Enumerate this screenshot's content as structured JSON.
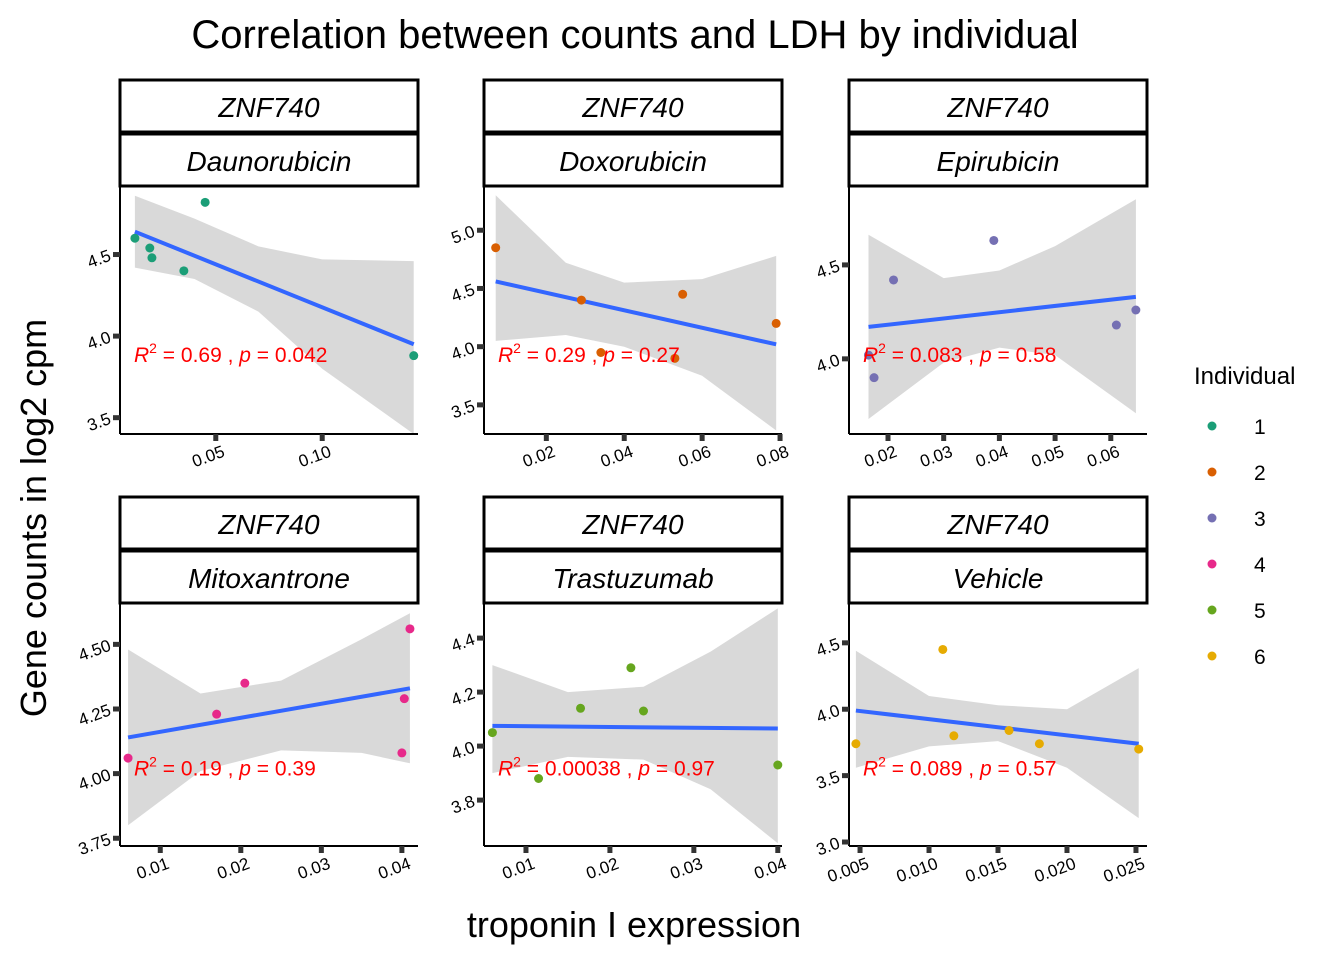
{
  "chart_data": {
    "type": "scatter",
    "title": "Correlation between counts and LDH by individual",
    "xlabel": "troponin I expression",
    "ylabel": "Gene counts in log2 cpm",
    "gene": "ZNF740",
    "legend": {
      "title": "Individual",
      "position": "right",
      "entries": [
        {
          "label": "1",
          "color": "#1B9E77"
        },
        {
          "label": "2",
          "color": "#D95F02"
        },
        {
          "label": "3",
          "color": "#7570B3"
        },
        {
          "label": "4",
          "color": "#E7298A"
        },
        {
          "label": "5",
          "color": "#66A61E"
        },
        {
          "label": "6",
          "color": "#E6AB02"
        }
      ]
    },
    "colors": {
      "fit_line": "#3366FF",
      "ribbon": "#D9D9D9",
      "annotation": "#FF0000"
    },
    "panels": [
      {
        "drug": "Daunorubicin",
        "xlim": [
          0.005,
          0.145
        ],
        "ylim": [
          3.4,
          4.92
        ],
        "xticks": [
          0.05,
          0.1
        ],
        "xtick_labels": [
          "0.05",
          "0.10"
        ],
        "yticks": [
          3.5,
          4.0,
          4.5
        ],
        "ytick_labels": [
          "3.5",
          "4.0",
          "4.5"
        ],
        "points": [
          {
            "x": 0.012,
            "y": 4.6,
            "ind": 1
          },
          {
            "x": 0.019,
            "y": 4.54,
            "ind": 1
          },
          {
            "x": 0.02,
            "y": 4.48,
            "ind": 1
          },
          {
            "x": 0.035,
            "y": 4.4,
            "ind": 1
          },
          {
            "x": 0.045,
            "y": 4.82,
            "ind": 1
          },
          {
            "x": 0.143,
            "y": 3.88,
            "ind": 1
          }
        ],
        "fit": {
          "x": [
            0.012,
            0.143
          ],
          "y": [
            4.64,
            3.95
          ]
        },
        "ribbon": {
          "x": [
            0.012,
            0.04,
            0.07,
            0.1,
            0.143
          ],
          "lower": [
            4.42,
            4.35,
            4.15,
            3.8,
            3.4
          ],
          "upper": [
            4.86,
            4.72,
            4.55,
            4.47,
            4.46
          ]
        },
        "r2": "0.69",
        "p": "0.042"
      },
      {
        "drug": "Doxorubicin",
        "xlim": [
          0.004,
          0.0805
        ],
        "ylim": [
          3.25,
          5.38
        ],
        "xticks": [
          0.02,
          0.04,
          0.06,
          0.08
        ],
        "xtick_labels": [
          "0.02",
          "0.04",
          "0.06",
          "0.08"
        ],
        "yticks": [
          3.5,
          4.0,
          4.5,
          5.0
        ],
        "ytick_labels": [
          "3.5",
          "4.0",
          "4.5",
          "5.0"
        ],
        "points": [
          {
            "x": 0.007,
            "y": 4.85,
            "ind": 2
          },
          {
            "x": 0.029,
            "y": 4.4,
            "ind": 2
          },
          {
            "x": 0.034,
            "y": 3.95,
            "ind": 2
          },
          {
            "x": 0.053,
            "y": 3.9,
            "ind": 2
          },
          {
            "x": 0.055,
            "y": 4.45,
            "ind": 2
          },
          {
            "x": 0.079,
            "y": 4.2,
            "ind": 2
          }
        ],
        "fit": {
          "x": [
            0.007,
            0.079
          ],
          "y": [
            4.56,
            4.02
          ]
        },
        "ribbon": {
          "x": [
            0.007,
            0.025,
            0.04,
            0.06,
            0.079
          ],
          "lower": [
            4.05,
            4.1,
            4.0,
            3.75,
            3.28
          ],
          "upper": [
            5.3,
            4.72,
            4.55,
            4.58,
            4.78
          ]
        },
        "r2": "0.29",
        "p": "0.27"
      },
      {
        "drug": "Epirubicin",
        "xlim": [
          0.013,
          0.0665
        ],
        "ylim": [
          3.6,
          4.92
        ],
        "xticks": [
          0.02,
          0.03,
          0.04,
          0.05,
          0.06
        ],
        "xtick_labels": [
          "0.02",
          "0.03",
          "0.04",
          "0.05",
          "0.06"
        ],
        "yticks": [
          4.0,
          4.5
        ],
        "ytick_labels": [
          "4.0",
          "4.5"
        ],
        "points": [
          {
            "x": 0.0165,
            "y": 4.02,
            "ind": 3
          },
          {
            "x": 0.0175,
            "y": 3.9,
            "ind": 3
          },
          {
            "x": 0.021,
            "y": 4.42,
            "ind": 3
          },
          {
            "x": 0.039,
            "y": 4.63,
            "ind": 3
          },
          {
            "x": 0.061,
            "y": 4.18,
            "ind": 3
          },
          {
            "x": 0.0645,
            "y": 4.26,
            "ind": 3
          }
        ],
        "fit": {
          "x": [
            0.0165,
            0.0645
          ],
          "y": [
            4.17,
            4.33
          ]
        },
        "ribbon": {
          "x": [
            0.0165,
            0.03,
            0.04,
            0.05,
            0.0645
          ],
          "lower": [
            3.68,
            3.98,
            4.06,
            4.02,
            3.71
          ],
          "upper": [
            4.66,
            4.43,
            4.47,
            4.6,
            4.85
          ]
        },
        "r2": "0.083",
        "p": "0.58"
      },
      {
        "drug": "Mitoxantrone",
        "xlim": [
          0.005,
          0.042
        ],
        "ylim": [
          3.72,
          4.66
        ],
        "xticks": [
          0.01,
          0.02,
          0.03,
          0.04
        ],
        "xtick_labels": [
          "0.01",
          "0.02",
          "0.03",
          "0.04"
        ],
        "yticks": [
          3.75,
          4.0,
          4.25,
          4.5
        ],
        "ytick_labels": [
          "3.75",
          "4.00",
          "4.25",
          "4.50"
        ],
        "points": [
          {
            "x": 0.006,
            "y": 4.06,
            "ind": 4
          },
          {
            "x": 0.017,
            "y": 4.23,
            "ind": 4
          },
          {
            "x": 0.0205,
            "y": 4.35,
            "ind": 4
          },
          {
            "x": 0.04,
            "y": 4.08,
            "ind": 4
          },
          {
            "x": 0.0403,
            "y": 4.29,
            "ind": 4
          },
          {
            "x": 0.041,
            "y": 4.56,
            "ind": 4
          }
        ],
        "fit": {
          "x": [
            0.006,
            0.041
          ],
          "y": [
            4.14,
            4.33
          ]
        },
        "ribbon": {
          "x": [
            0.006,
            0.015,
            0.025,
            0.035,
            0.041
          ],
          "lower": [
            3.8,
            4.01,
            4.09,
            4.08,
            4.04
          ],
          "upper": [
            4.48,
            4.31,
            4.36,
            4.52,
            4.62
          ]
        },
        "r2": "0.19",
        "p": "0.39"
      },
      {
        "drug": "Trastuzumab",
        "xlim": [
          0.005,
          0.0405
        ],
        "ylim": [
          3.63,
          4.53
        ],
        "xticks": [
          0.01,
          0.02,
          0.03,
          0.04
        ],
        "xtick_labels": [
          "0.01",
          "0.02",
          "0.03",
          "0.04"
        ],
        "yticks": [
          3.8,
          4.0,
          4.2,
          4.4
        ],
        "ytick_labels": [
          "3.8",
          "4.0",
          "4.2",
          "4.4"
        ],
        "points": [
          {
            "x": 0.006,
            "y": 4.05,
            "ind": 5
          },
          {
            "x": 0.0115,
            "y": 3.88,
            "ind": 5
          },
          {
            "x": 0.0165,
            "y": 4.14,
            "ind": 5
          },
          {
            "x": 0.0225,
            "y": 4.29,
            "ind": 5
          },
          {
            "x": 0.024,
            "y": 4.13,
            "ind": 5
          },
          {
            "x": 0.04,
            "y": 3.93,
            "ind": 5
          }
        ],
        "fit": {
          "x": [
            0.006,
            0.04
          ],
          "y": [
            4.075,
            4.065
          ]
        },
        "ribbon": {
          "x": [
            0.006,
            0.015,
            0.024,
            0.032,
            0.04
          ],
          "lower": [
            3.9,
            3.96,
            3.95,
            3.84,
            3.64
          ],
          "upper": [
            4.3,
            4.2,
            4.22,
            4.35,
            4.51
          ]
        },
        "r2": "0.00038",
        "p": "0.97"
      },
      {
        "drug": "Vehicle",
        "xlim": [
          0.0042,
          0.0258
        ],
        "ylim": [
          2.97,
          4.8
        ],
        "xticks": [
          0.005,
          0.01,
          0.015,
          0.02,
          0.025
        ],
        "xtick_labels": [
          "0.005",
          "0.010",
          "0.015",
          "0.020",
          "0.025"
        ],
        "yticks": [
          3.0,
          3.5,
          4.0,
          4.5
        ],
        "ytick_labels": [
          "3.0",
          "3.5",
          "4.0",
          "4.5"
        ],
        "points": [
          {
            "x": 0.0047,
            "y": 3.74,
            "ind": 6
          },
          {
            "x": 0.011,
            "y": 4.45,
            "ind": 6
          },
          {
            "x": 0.0118,
            "y": 3.8,
            "ind": 6
          },
          {
            "x": 0.0158,
            "y": 3.84,
            "ind": 6
          },
          {
            "x": 0.018,
            "y": 3.74,
            "ind": 6
          },
          {
            "x": 0.0252,
            "y": 3.7,
            "ind": 6
          }
        ],
        "fit": {
          "x": [
            0.0047,
            0.0252
          ],
          "y": [
            3.99,
            3.74
          ]
        },
        "ribbon": {
          "x": [
            0.0047,
            0.01,
            0.015,
            0.02,
            0.0252
          ],
          "lower": [
            3.56,
            3.72,
            3.76,
            3.56,
            3.18
          ],
          "upper": [
            4.44,
            4.1,
            4.03,
            4.0,
            4.31
          ]
        },
        "r2": "0.089",
        "p": "0.57"
      }
    ]
  }
}
